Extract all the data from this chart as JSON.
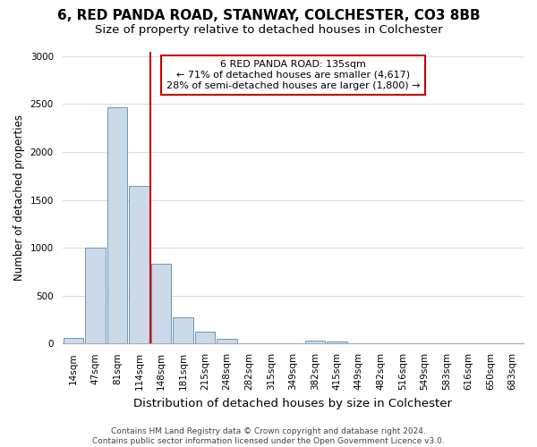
{
  "title": "6, RED PANDA ROAD, STANWAY, COLCHESTER, CO3 8BB",
  "subtitle": "Size of property relative to detached houses in Colchester",
  "xlabel": "Distribution of detached houses by size in Colchester",
  "ylabel": "Number of detached properties",
  "categories": [
    "14sqm",
    "47sqm",
    "81sqm",
    "114sqm",
    "148sqm",
    "181sqm",
    "215sqm",
    "248sqm",
    "282sqm",
    "315sqm",
    "349sqm",
    "382sqm",
    "415sqm",
    "449sqm",
    "482sqm",
    "516sqm",
    "549sqm",
    "583sqm",
    "616sqm",
    "650sqm",
    "683sqm"
  ],
  "values": [
    60,
    1000,
    2470,
    1650,
    830,
    270,
    120,
    50,
    0,
    0,
    0,
    35,
    20,
    0,
    0,
    0,
    0,
    0,
    0,
    0,
    0
  ],
  "bar_color": "#ccd9e8",
  "bar_edge_color": "#6699bb",
  "vline_color": "#cc0000",
  "annotation_text": "6 RED PANDA ROAD: 135sqm\n← 71% of detached houses are smaller (4,617)\n28% of semi-detached houses are larger (1,800) →",
  "annotation_box_facecolor": "#ffffff",
  "annotation_box_edgecolor": "#cc0000",
  "ylim": [
    0,
    3050
  ],
  "yticks": [
    0,
    500,
    1000,
    1500,
    2000,
    2500,
    3000
  ],
  "footer": "Contains HM Land Registry data © Crown copyright and database right 2024.\nContains public sector information licensed under the Open Government Licence v3.0.",
  "bg_color": "#ffffff",
  "grid_color": "#dddddd",
  "title_fontsize": 11,
  "subtitle_fontsize": 9.5,
  "ylabel_fontsize": 8.5,
  "xlabel_fontsize": 9.5,
  "tick_fontsize": 7.5,
  "footer_fontsize": 6.5
}
